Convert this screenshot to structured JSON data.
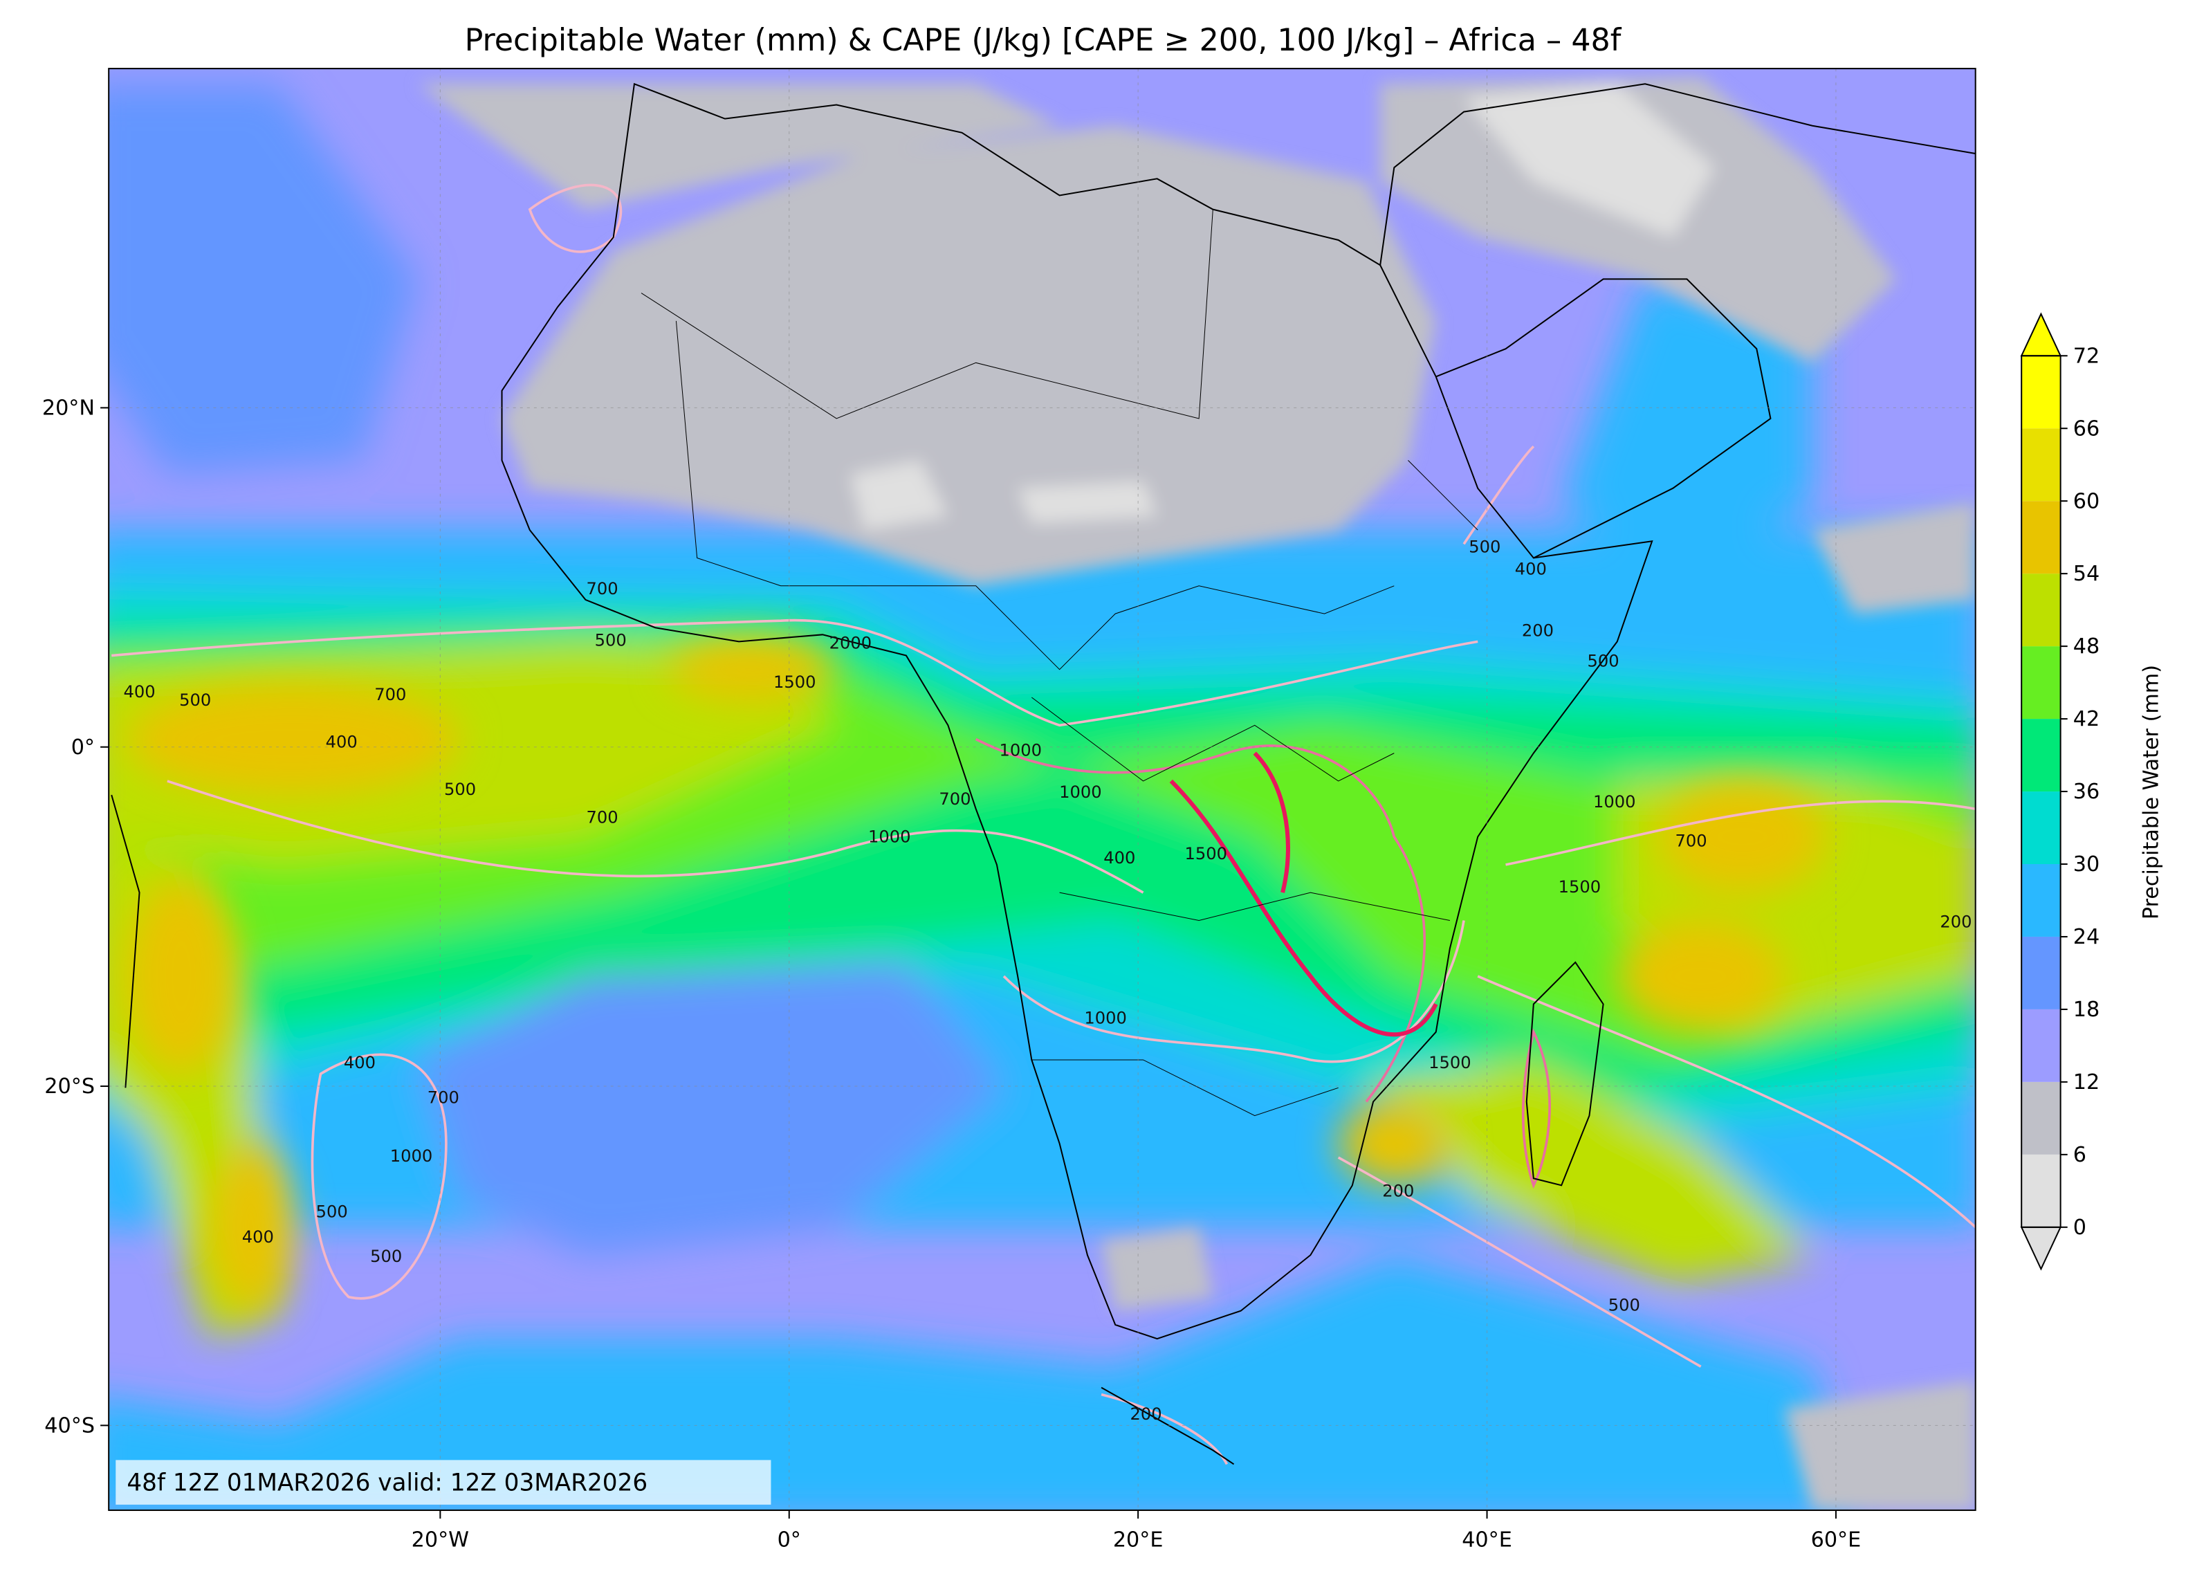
{
  "map": {
    "title": "Precipitable Water (mm) & CAPE (J/kg) [CAPE ≥ 200, 100 J/kg] – Africa – 48f",
    "xlim": [
      -39,
      68
    ],
    "ylim": [
      -45,
      40
    ],
    "lon_ticks": [
      {
        "value": -20,
        "label": "20°W"
      },
      {
        "value": 0,
        "label": "0°"
      },
      {
        "value": 20,
        "label": "20°E"
      },
      {
        "value": 40,
        "label": "40°E"
      },
      {
        "value": 60,
        "label": "60°E"
      }
    ],
    "lat_ticks": [
      {
        "value": 20,
        "label": "20°N"
      },
      {
        "value": 0,
        "label": "0°"
      },
      {
        "value": -20,
        "label": "20°S"
      },
      {
        "value": -40,
        "label": "40°S"
      }
    ],
    "info": "48f 12Z 01MAR2026 valid: 12Z 03MAR2026"
  },
  "colorbar": {
    "label": "Precipitable Water (mm)",
    "levels": [
      0,
      6,
      12,
      18,
      24,
      30,
      36,
      42,
      48,
      54,
      60,
      66,
      72
    ],
    "colors": [
      "#e0e0e0",
      "#bfc0c8",
      "#9c9cff",
      "#6496ff",
      "#2ab8ff",
      "#00dcd0",
      "#00e878",
      "#66ee22",
      "#bde000",
      "#e8c400",
      "#e8e000",
      "#ffff00"
    ]
  },
  "contour_labels": [
    "400",
    "500",
    "700",
    "400",
    "500",
    "700",
    "1500",
    "2000",
    "1000",
    "700",
    "1000",
    "1000",
    "400",
    "1500",
    "1000",
    "1500",
    "200",
    "500",
    "200",
    "1000",
    "700",
    "1500",
    "200",
    "400",
    "500",
    "200",
    "500",
    "700",
    "500",
    "400",
    "1000",
    "500",
    "400",
    "500",
    "700"
  ]
}
